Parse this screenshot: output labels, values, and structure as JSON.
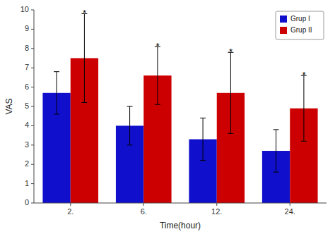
{
  "chart_data": {
    "type": "bar",
    "categories": [
      "2.",
      "6.",
      "12.",
      "24."
    ],
    "series": [
      {
        "name": "Grup I",
        "color": "#1010cc",
        "values": [
          5.7,
          4.0,
          3.3,
          2.7
        ],
        "errors": [
          1.1,
          1.0,
          1.1,
          1.1
        ]
      },
      {
        "name": "Grup II",
        "color": "#cc0000",
        "values": [
          7.5,
          6.6,
          5.7,
          4.9
        ],
        "errors": [
          2.3,
          1.5,
          2.1,
          1.7
        ],
        "annotations": [
          "*",
          "*",
          "*",
          "*"
        ]
      }
    ],
    "xlabel": "Time(hour)",
    "ylabel": "VAS",
    "ylim": [
      0,
      10
    ],
    "yticks": [
      0,
      1,
      2,
      3,
      4,
      5,
      6,
      7,
      8,
      9,
      10
    ],
    "grid": false,
    "legend": "upper right"
  }
}
